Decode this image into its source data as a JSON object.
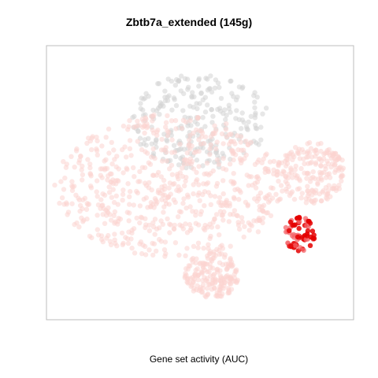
{
  "chart_data": {
    "type": "scatter",
    "title": "Zbtb7a_extended (145g)",
    "xlabel": "Gene set activity (AUC)",
    "ylabel": "",
    "grid": false,
    "legend": "none",
    "colors": {
      "low": "#FBD3CF",
      "mid": "#F4666A",
      "high": "#E40000",
      "grey": "#D3D3D3",
      "frame": "#BEBEBE"
    },
    "regions": [
      {
        "name": "upper-grey-cluster",
        "level": "none",
        "extent": [
          -18,
          18,
          4,
          32
        ]
      },
      {
        "name": "main-pink-mass",
        "level": "low",
        "extent": [
          -38,
          22,
          -22,
          20
        ]
      },
      {
        "name": "right-wing",
        "level": "low",
        "extent": [
          20,
          38,
          -6,
          12
        ]
      },
      {
        "name": "lower-lobe",
        "level": "low",
        "extent": [
          -4,
          10,
          -34,
          -20
        ]
      },
      {
        "name": "hotspot",
        "level": "high",
        "extent": [
          22,
          30,
          -20,
          -10
        ]
      }
    ]
  }
}
